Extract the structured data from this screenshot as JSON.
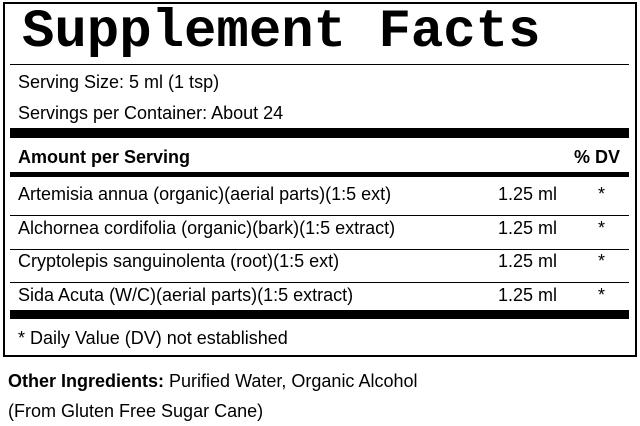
{
  "title": "Supplement Facts",
  "serving_size": "Serving Size: 5 ml (1 tsp)",
  "servings_per_container": "Servings per Container: About 24",
  "header": {
    "amount": "Amount per Serving",
    "dv": "% DV"
  },
  "rows": [
    {
      "name": "Artemisia annua (organic)(aerial parts)(1:5 ext)",
      "amount": "1.25 ml",
      "dv": "*"
    },
    {
      "name": "Alchornea cordifolia (organic)(bark)(1:5 extract)",
      "amount": "1.25 ml",
      "dv": "*"
    },
    {
      "name": "Cryptolepis sanguinolenta (root)(1:5 ext)",
      "amount": "1.25 ml",
      "dv": "*"
    },
    {
      "name": "Sida Acuta (W/C)(aerial parts)(1:5 extract)",
      "amount": "1.25 ml",
      "dv": "*"
    }
  ],
  "footnote": "* Daily Value (DV) not established",
  "other_ingredients": {
    "label": "Other Ingredients:",
    "text": "Purified Water, Organic Alcohol (From Gluten Free Sugar Cane)"
  }
}
